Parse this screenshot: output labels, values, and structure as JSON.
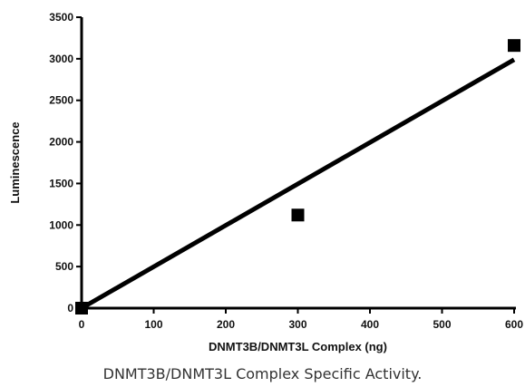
{
  "chart_data": {
    "type": "scatter",
    "title": "",
    "xlabel": "DNMT3B/DNMT3L Complex (ng)",
    "ylabel": "Luminescence",
    "xlim": [
      0,
      600
    ],
    "ylim": [
      0,
      3500
    ],
    "xticks": [
      0,
      100,
      200,
      300,
      400,
      500,
      600
    ],
    "yticks": [
      0,
      500,
      1000,
      1500,
      2000,
      2500,
      3000,
      3500
    ],
    "series": [
      {
        "points": [
          {
            "x": 0,
            "y": 0
          },
          {
            "x": 300,
            "y": 1120
          },
          {
            "x": 600,
            "y": 3160
          }
        ],
        "color": "#000000",
        "marker": "square"
      }
    ],
    "fit_line": {
      "x": [
        0,
        600
      ],
      "y": [
        0,
        2990
      ],
      "color": "#000000"
    }
  },
  "caption": "DNMT3B/DNMT3L Complex Specific Activity."
}
